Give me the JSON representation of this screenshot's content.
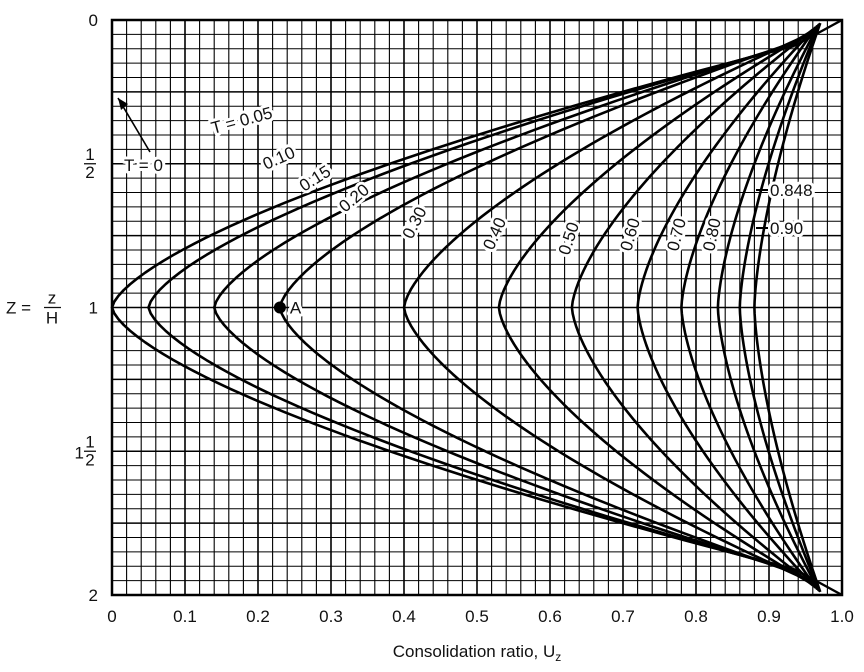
{
  "chart_data": {
    "type": "line",
    "xlabel": "Consolidation ratio, U",
    "xlabel_sub": "z",
    "ylabel_parts": {
      "prefix": "Z =",
      "num": "z",
      "den": "H"
    },
    "xlim": [
      0,
      1.0
    ],
    "ylim": [
      0,
      2
    ],
    "y_inverted": true,
    "grid": true,
    "x_ticks": [
      {
        "value": 0,
        "label": "0"
      },
      {
        "value": 0.1,
        "label": "0.1"
      },
      {
        "value": 0.2,
        "label": "0.2"
      },
      {
        "value": 0.3,
        "label": "0.3"
      },
      {
        "value": 0.4,
        "label": "0.4"
      },
      {
        "value": 0.5,
        "label": "0.5"
      },
      {
        "value": 0.6,
        "label": "0.6"
      },
      {
        "value": 0.7,
        "label": "0.7"
      },
      {
        "value": 0.8,
        "label": "0.8"
      },
      {
        "value": 0.9,
        "label": "0.9"
      },
      {
        "value": 1.0,
        "label": "1.0"
      }
    ],
    "y_ticks": [
      {
        "value": 0,
        "whole": "0"
      },
      {
        "value": 0.5,
        "whole": "",
        "num": "1",
        "den": "2"
      },
      {
        "value": 1,
        "whole": "1"
      },
      {
        "value": 1.5,
        "whole": "1",
        "num": "1",
        "den": "2"
      },
      {
        "value": 2,
        "whole": "2"
      }
    ],
    "series": [
      {
        "name": "0.05",
        "label": "T = 0.05",
        "uMid": 0.0
      },
      {
        "name": "0.10",
        "label": "0.10",
        "uMid": 0.05
      },
      {
        "name": "0.15",
        "label": "0.15",
        "uMid": 0.14
      },
      {
        "name": "0.20",
        "label": "0.20",
        "uMid": 0.23
      },
      {
        "name": "0.30",
        "label": "0.30",
        "uMid": 0.4
      },
      {
        "name": "0.40",
        "label": "0.40",
        "uMid": 0.53
      },
      {
        "name": "0.50",
        "label": "0.50",
        "uMid": 0.63
      },
      {
        "name": "0.60",
        "label": "0.60",
        "uMid": 0.72
      },
      {
        "name": "0.70",
        "label": "0.70",
        "uMid": 0.78
      },
      {
        "name": "0.80",
        "label": "0.80",
        "uMid": 0.83
      },
      {
        "name": "0.848",
        "label": "0.848",
        "uMid": 0.86
      },
      {
        "name": "0.90",
        "label": "0.90",
        "uMid": 0.88
      }
    ],
    "annotations": [
      {
        "label": "T = 0"
      },
      {
        "label": "A",
        "x": 0.23,
        "y": 1
      }
    ]
  }
}
